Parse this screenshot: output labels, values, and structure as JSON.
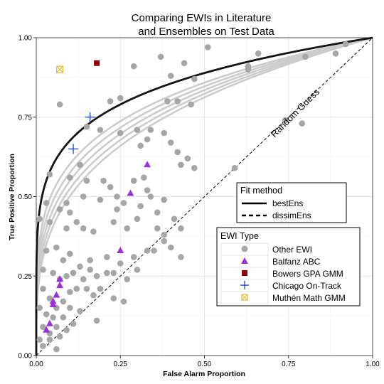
{
  "chart_data": {
    "type": "scatter",
    "title_line1": "Comparing EWIs in Literature",
    "title_line2": "and Ensembles on Test Data",
    "xlabel": "False Alarm Proportion",
    "ylabel": "True Positive Proportion",
    "xlim": [
      0,
      1
    ],
    "ylim": [
      0,
      1
    ],
    "x_ticks": [
      "0.00",
      "0.25",
      "0.50",
      "0.75",
      "1.00"
    ],
    "y_ticks": [
      "0.00",
      "0.25",
      "0.50",
      "0.75",
      "1.00"
    ],
    "grid": true,
    "annotation": "Random Guess",
    "fit_legend": {
      "title": "Fit method",
      "entries": [
        "bestEns",
        "dissimEns"
      ]
    },
    "ewi_legend": {
      "title": "EWI Type",
      "entries": [
        "Other EWI",
        "Balfanz ABC",
        "Bowers GPA GMM",
        "Chicago On-Track",
        "Muthén Math GMM"
      ]
    },
    "colors": {
      "other": "#a6a6a6",
      "balfanz": "#9b30d9",
      "bowers": "#8b0000",
      "chicago": "#1f3fd6",
      "muthen": "#e8b93a",
      "best_curve": "#141414",
      "ensemble_curves": "#cccccc"
    },
    "series": [
      {
        "name": "Other EWI",
        "points": [
          [
            0.22,
            0.8
          ],
          [
            0.29,
            0.91
          ],
          [
            0.37,
            0.94
          ],
          [
            0.4,
            0.88
          ],
          [
            0.44,
            0.92
          ],
          [
            0.47,
            0.87
          ],
          [
            0.51,
            0.97
          ],
          [
            0.63,
            0.91
          ],
          [
            0.66,
            0.95
          ],
          [
            0.8,
            0.94
          ],
          [
            0.89,
            0.95
          ],
          [
            0.92,
            0.98
          ],
          [
            0.07,
            0.79
          ],
          [
            0.25,
            0.81
          ],
          [
            0.39,
            0.8
          ],
          [
            0.42,
            0.8
          ],
          [
            0.46,
            0.79
          ],
          [
            0.63,
            0.9
          ],
          [
            0.74,
            0.74
          ],
          [
            0.79,
            0.73
          ],
          [
            0.15,
            0.72
          ],
          [
            0.19,
            0.71
          ],
          [
            0.25,
            0.7
          ],
          [
            0.3,
            0.71
          ],
          [
            0.34,
            0.71
          ],
          [
            0.38,
            0.7
          ],
          [
            0.31,
            0.66
          ],
          [
            0.33,
            0.68
          ],
          [
            0.4,
            0.67
          ],
          [
            0.42,
            0.64
          ],
          [
            0.45,
            0.62
          ],
          [
            0.47,
            0.59
          ],
          [
            0.43,
            0.6
          ],
          [
            0.59,
            0.59
          ],
          [
            0.04,
            0.57
          ],
          [
            0.1,
            0.56
          ],
          [
            0.13,
            0.6
          ],
          [
            0.15,
            0.55
          ],
          [
            0.2,
            0.55
          ],
          [
            0.22,
            0.53
          ],
          [
            0.24,
            0.5
          ],
          [
            0.29,
            0.55
          ],
          [
            0.32,
            0.56
          ],
          [
            0.33,
            0.52
          ],
          [
            0.34,
            0.5
          ],
          [
            0.38,
            0.49
          ],
          [
            0.03,
            0.48
          ],
          [
            0.07,
            0.46
          ],
          [
            0.09,
            0.48
          ],
          [
            0.1,
            0.45
          ],
          [
            0.14,
            0.5
          ],
          [
            0.19,
            0.49
          ],
          [
            0.24,
            0.46
          ],
          [
            0.26,
            0.48
          ],
          [
            0.31,
            0.47
          ],
          [
            0.36,
            0.45
          ],
          [
            0.01,
            0.43
          ],
          [
            0.04,
            0.42
          ],
          [
            0.09,
            0.4
          ],
          [
            0.12,
            0.42
          ],
          [
            0.14,
            0.4
          ],
          [
            0.17,
            0.39
          ],
          [
            0.23,
            0.42
          ],
          [
            0.27,
            0.4
          ],
          [
            0.3,
            0.43
          ],
          [
            0.36,
            0.4
          ],
          [
            0.38,
            0.38
          ],
          [
            0.41,
            0.43
          ],
          [
            0.43,
            0.4
          ],
          [
            0.03,
            0.33
          ],
          [
            0.06,
            0.34
          ],
          [
            0.08,
            0.3
          ],
          [
            0.1,
            0.32
          ],
          [
            0.13,
            0.28
          ],
          [
            0.16,
            0.3
          ],
          [
            0.21,
            0.31
          ],
          [
            0.25,
            0.29
          ],
          [
            0.29,
            0.31
          ],
          [
            0.33,
            0.33
          ],
          [
            0.35,
            0.33
          ],
          [
            0.38,
            0.36
          ],
          [
            0.4,
            0.34
          ],
          [
            0.43,
            0.31
          ],
          [
            0.02,
            0.27
          ],
          [
            0.05,
            0.26
          ],
          [
            0.07,
            0.24
          ],
          [
            0.09,
            0.25
          ],
          [
            0.11,
            0.26
          ],
          [
            0.14,
            0.24
          ],
          [
            0.16,
            0.27
          ],
          [
            0.18,
            0.25
          ],
          [
            0.21,
            0.26
          ],
          [
            0.23,
            0.26
          ],
          [
            0.27,
            0.24
          ],
          [
            0.3,
            0.27
          ],
          [
            0.02,
            0.21
          ],
          [
            0.04,
            0.18
          ],
          [
            0.06,
            0.15
          ],
          [
            0.08,
            0.17
          ],
          [
            0.1,
            0.2
          ],
          [
            0.12,
            0.21
          ],
          [
            0.15,
            0.21
          ],
          [
            0.17,
            0.19
          ],
          [
            0.19,
            0.21
          ],
          [
            0.23,
            0.18
          ],
          [
            0.26,
            0.17
          ],
          [
            0.01,
            0.15
          ],
          [
            0.03,
            0.13
          ],
          [
            0.05,
            0.12
          ],
          [
            0.08,
            0.12
          ],
          [
            0.1,
            0.15
          ],
          [
            0.13,
            0.14
          ],
          [
            0.02,
            0.09
          ],
          [
            0.04,
            0.07
          ],
          [
            0.06,
            0.09
          ],
          [
            0.09,
            0.08
          ],
          [
            0.11,
            0.1
          ],
          [
            0.18,
            0.11
          ],
          [
            0.01,
            0.05
          ],
          [
            0.02,
            0.03
          ],
          [
            0.04,
            0.05
          ],
          [
            0.06,
            0.02
          ],
          [
            0.07,
            0.06
          ]
        ]
      },
      {
        "name": "Balfanz ABC",
        "points": [
          [
            0.33,
            0.6
          ],
          [
            0.28,
            0.51
          ],
          [
            0.25,
            0.33
          ],
          [
            0.07,
            0.24
          ],
          [
            0.07,
            0.22
          ],
          [
            0.06,
            0.19
          ],
          [
            0.05,
            0.17
          ],
          [
            0.05,
            0.16
          ],
          [
            0.04,
            0.1
          ],
          [
            0.03,
            0.08
          ]
        ]
      },
      {
        "name": "Bowers GPA GMM",
        "points": [
          [
            0.18,
            0.92
          ]
        ]
      },
      {
        "name": "Chicago On-Track",
        "points": [
          [
            0.16,
            0.75
          ],
          [
            0.11,
            0.65
          ]
        ]
      },
      {
        "name": "Muthén Math GMM",
        "points": [
          [
            0.07,
            0.9
          ]
        ]
      }
    ],
    "curves": [
      {
        "name": "bestEns",
        "exponent": 0.17
      },
      {
        "name": "ensemble",
        "exponent": 0.22
      },
      {
        "name": "ensemble",
        "exponent": 0.24
      },
      {
        "name": "ensemble",
        "exponent": 0.26
      },
      {
        "name": "ensemble",
        "exponent": 0.28
      },
      {
        "name": "ensemble",
        "exponent": 0.3
      }
    ]
  }
}
